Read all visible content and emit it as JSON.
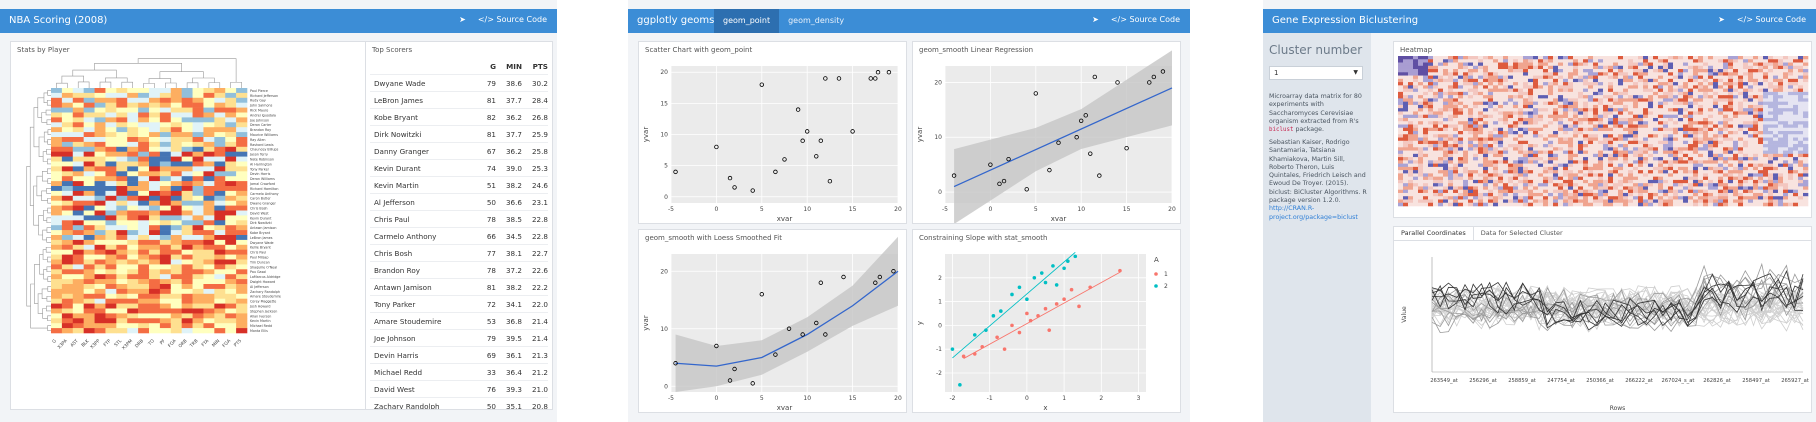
{
  "common": {
    "share_icon": "share-icon",
    "source_code_label": "Source Code"
  },
  "dash1": {
    "title": "NBA Scoring (2008)",
    "heatmap_title": "Stats by Player",
    "players": [
      "Paul Pierce",
      "Richard Jefferson",
      "Rudy Gay",
      "John Salmons",
      "Rick Mauro",
      "Andrei Iguodala",
      "Joe Johnson",
      "Deron Carter",
      "Brandon Roy",
      "Maurice Williams",
      "Ray Allen",
      "Rashard Lewis",
      "Chauncey Billups",
      "Jason Terry",
      "Nate Robinson",
      "Al Harrington",
      "Tony Parker",
      "Devin Harris",
      "Deron Williams",
      "Jamal Crawford",
      "Richard Hamilton",
      "Carmelo Anthony",
      "Caron Butler",
      "Dwane Granger",
      "Chris Bosh",
      "David West",
      "Kevin Durant",
      "Dirk Nowitzki",
      "Antawn Jamison",
      "Kobe Bryant",
      "LeBron James",
      "Dwyane Wade",
      "Kellie Bryant",
      "Chris Paul",
      "Paul Milsap",
      "Tim Duncan",
      "Shaquille O'Neal",
      "Pau Gasol",
      "LaMarcus Aldridge",
      "Dwight Howard",
      "Al Jefferson",
      "Zachary Randolph",
      "Amare Stoudemire",
      "Corey Maggette",
      "Josh Howard",
      "Stephen Jackson",
      "Allan Iverson",
      "Kevin Martin",
      "Michael Redd",
      "Monta Ellis"
    ],
    "stats": [
      "G",
      "X3PA",
      "AST",
      "BLK",
      "X3PP",
      "FTP",
      "STL",
      "X3PM",
      "DRB",
      "TO",
      "PF",
      "FGA",
      "ORB",
      "TRB",
      "FTA",
      "MIN",
      "FGA",
      "PTS"
    ],
    "scorers_title": "Top Scorers",
    "scorer_columns": [
      "",
      "G",
      "MIN",
      "PTS"
    ],
    "scorers": [
      [
        "Dwyane Wade",
        "79",
        "38.6",
        "30.2"
      ],
      [
        "LeBron James",
        "81",
        "37.7",
        "28.4"
      ],
      [
        "Kobe Bryant",
        "82",
        "36.2",
        "26.8"
      ],
      [
        "Dirk Nowitzki",
        "81",
        "37.7",
        "25.9"
      ],
      [
        "Danny Granger",
        "67",
        "36.2",
        "25.8"
      ],
      [
        "Kevin Durant",
        "74",
        "39.0",
        "25.3"
      ],
      [
        "Kevin Martin",
        "51",
        "38.2",
        "24.6"
      ],
      [
        "Al Jefferson",
        "50",
        "36.6",
        "23.1"
      ],
      [
        "Chris Paul",
        "78",
        "38.5",
        "22.8"
      ],
      [
        "Carmelo Anthony",
        "66",
        "34.5",
        "22.8"
      ],
      [
        "Chris Bosh",
        "77",
        "38.1",
        "22.7"
      ],
      [
        "Brandon Roy",
        "78",
        "37.2",
        "22.6"
      ],
      [
        "Antawn Jamison",
        "81",
        "38.2",
        "22.2"
      ],
      [
        "Tony Parker",
        "72",
        "34.1",
        "22.0"
      ],
      [
        "Amare Stoudemire",
        "53",
        "36.8",
        "21.4"
      ],
      [
        "Joe Johnson",
        "79",
        "39.5",
        "21.4"
      ],
      [
        "Devin Harris",
        "69",
        "36.1",
        "21.3"
      ],
      [
        "Michael Redd",
        "33",
        "36.4",
        "21.2"
      ],
      [
        "David West",
        "76",
        "39.3",
        "21.0"
      ],
      [
        "Zachary Randolph",
        "50",
        "35.1",
        "20.8"
      ]
    ]
  },
  "dash2": {
    "title": "ggplotly geoms",
    "tabs": [
      "geom_point",
      "geom_density"
    ],
    "panels": {
      "p1": {
        "title": "Scatter Chart with geom_point"
      },
      "p2": {
        "title": "geom_smooth Linear Regression"
      },
      "p3": {
        "title": "geom_smooth with Loess Smoothed Fit"
      },
      "p4": {
        "title": "Constraining Slope with stat_smooth"
      }
    }
  },
  "dash3": {
    "title": "Gene Expression Biclustering",
    "sidebar_heading": "Cluster number",
    "select_value": "1",
    "desc_1": "Microarray data matrix for 80 experiments with Saccharomyces Cerevisiae organism extracted from R's",
    "desc_code": "biclust",
    "desc_2": "package.",
    "citation": "Sebastian Kaiser, Rodrigo Santamaria, Tatsiana Khamiakova, Martin Sill, Roberto Theron, Luis Quintales, Friedrich Leisch and Ewoud De Troyer. (2015). biclust: BiCluster Algorithms. R package version 1.2.0.",
    "link": "http://CRAN.R-project.org/package=biclust",
    "heatmap_title": "Heatmap",
    "subtabs": [
      "Parallel Coordinates",
      "Data for Selected Cluster"
    ]
  },
  "chart_data": [
    {
      "type": "heatmap",
      "title": "Stats by Player",
      "x_tick_labels": [
        "G",
        "X3PA",
        "AST",
        "BLK",
        "X3PP",
        "FTP",
        "STL",
        "X3PM",
        "DRB",
        "TO",
        "PF",
        "FGA",
        "ORB",
        "TRB",
        "FTA",
        "MIN",
        "FGA",
        "PTS"
      ]
    },
    {
      "type": "scatter",
      "title": "Scatter Chart with geom_point",
      "xlabel": "xvar",
      "ylabel": "yvar",
      "xlim": [
        -5,
        20
      ],
      "ylim": [
        -1,
        21
      ],
      "x_ticks": [
        -5,
        0,
        5,
        10,
        15,
        20
      ],
      "y_ticks": [
        0,
        5,
        10,
        15,
        20
      ],
      "x": [
        -4.5,
        0,
        1.5,
        2,
        4,
        5,
        6.5,
        7.5,
        9,
        9.5,
        10,
        11,
        11.5,
        12,
        12.5,
        13.5,
        15,
        17,
        17.5,
        17.8,
        19
      ],
      "y": [
        4,
        8,
        3,
        1.5,
        1,
        18,
        4,
        6,
        14,
        9,
        10.5,
        6.5,
        9,
        19,
        2.5,
        19,
        10.5,
        19,
        19,
        20,
        20
      ]
    },
    {
      "type": "scatter",
      "title": "geom_smooth Linear Regression",
      "xlabel": "xvar",
      "ylabel": "yvar",
      "xlim": [
        -5,
        20
      ],
      "ylim": [
        -2,
        23
      ],
      "x_ticks": [
        -5,
        0,
        5,
        10,
        15,
        20
      ],
      "y_ticks": [
        0,
        10,
        20
      ],
      "x": [
        -4,
        0,
        1,
        1.5,
        2,
        4,
        5,
        6.5,
        7.5,
        9.5,
        10,
        10.5,
        11,
        11.5,
        12,
        14,
        15,
        17.5,
        18,
        19
      ],
      "y": [
        3,
        5,
        1.5,
        2,
        6,
        0.5,
        18,
        4,
        9,
        10,
        13,
        14,
        7,
        21,
        3,
        20,
        8,
        20,
        21,
        22
      ],
      "fit_line": {
        "x": [
          -4,
          20
        ],
        "y": [
          1,
          19
        ]
      }
    },
    {
      "type": "scatter",
      "title": "geom_smooth with Loess Smoothed Fit",
      "xlabel": "xvar",
      "ylabel": "yvar",
      "xlim": [
        -5,
        20
      ],
      "ylim": [
        -1,
        23
      ],
      "x_ticks": [
        -5,
        0,
        5,
        10,
        15,
        20
      ],
      "y_ticks": [
        0,
        10,
        20
      ],
      "x": [
        -4.5,
        0,
        1.5,
        2,
        4,
        5,
        6.5,
        8,
        9.5,
        11,
        11.5,
        12,
        14,
        17.5,
        18,
        19.5
      ],
      "y": [
        4,
        7,
        1,
        3,
        0.5,
        16,
        5.5,
        10,
        9,
        11,
        18,
        9,
        19,
        18,
        19,
        20
      ],
      "smooth": {
        "x": [
          -4.5,
          0,
          5,
          10,
          15,
          20
        ],
        "y": [
          4,
          3.5,
          5,
          9,
          14,
          20
        ]
      }
    },
    {
      "type": "scatter",
      "title": "Constraining Slope with stat_smooth",
      "xlabel": "x",
      "ylabel": "y",
      "xlim": [
        -2.2,
        3.2
      ],
      "ylim": [
        -2.8,
        3
      ],
      "x_ticks": [
        -2,
        -1,
        0,
        1,
        2,
        3
      ],
      "y_ticks": [
        -2,
        -1,
        0,
        1,
        2
      ],
      "legend_title": "A",
      "series": [
        {
          "name": "1",
          "color": "#f8766d",
          "x": [
            -1.7,
            -1.4,
            -1.2,
            -0.8,
            -0.6,
            -0.4,
            -0.2,
            0,
            0.1,
            0.3,
            0.5,
            0.6,
            0.8,
            1.0,
            1.2,
            1.4,
            1.7,
            2.5
          ],
          "y": [
            -1.3,
            -1.2,
            -0.9,
            -0.5,
            -1.0,
            0.0,
            -0.3,
            0.5,
            0.2,
            0.4,
            0.7,
            -0.2,
            0.9,
            1.1,
            1.5,
            0.8,
            1.6,
            2.3
          ]
        },
        {
          "name": "2",
          "color": "#00bfc4",
          "x": [
            -2.0,
            -1.8,
            -1.4,
            -1.1,
            -0.9,
            -0.7,
            -0.4,
            -0.2,
            0.0,
            0.2,
            0.4,
            0.5,
            0.7,
            0.8,
            1.0,
            1.1,
            1.3
          ],
          "y": [
            -1.0,
            -2.5,
            -0.4,
            -0.2,
            0.4,
            0.6,
            1.3,
            1.6,
            1.1,
            2.0,
            2.2,
            1.8,
            2.5,
            1.7,
            2.4,
            2.7,
            2.9
          ]
        }
      ]
    },
    {
      "type": "heatmap",
      "title": "Heatmap"
    },
    {
      "type": "line",
      "title": "Parallel Coordinates",
      "xlabel": "Rows",
      "ylabel": "Value",
      "x_tick_labels": [
        "263549_at",
        "256296_at",
        "258859_at",
        "247754_at",
        "250366_at",
        "266222_at",
        "267024_s_at",
        "262826_at",
        "258497_at",
        "265927_at"
      ]
    }
  ]
}
